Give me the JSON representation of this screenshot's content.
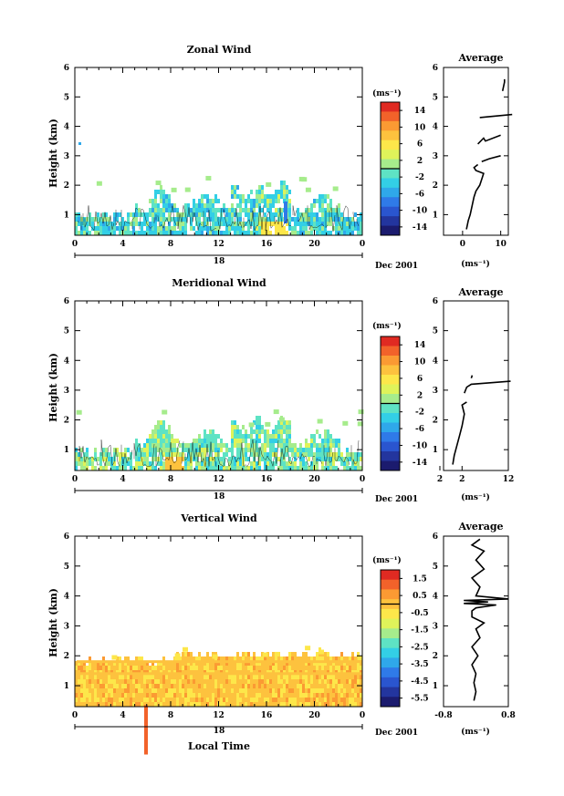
{
  "colors": {
    "palette": [
      "#1b1b6e",
      "#23359e",
      "#2a55cf",
      "#2f7ae8",
      "#2fa8ea",
      "#33cfe6",
      "#5ee3c4",
      "#a6ec8c",
      "#dff35a",
      "#fde74a",
      "#fdc23e",
      "#fb9a33",
      "#f2622a",
      "#e02a22"
    ],
    "vertical_dominant": "#fdc23e"
  },
  "chart_data": [
    {
      "type": "heatmap",
      "title": "Zonal Wind",
      "ylabel": "Height (km)",
      "xlabel": "",
      "x_ticks": [
        "0",
        "4",
        "8",
        "12",
        "16",
        "20",
        "0"
      ],
      "y_ticks": [
        "1",
        "2",
        "3",
        "4",
        "5",
        "6"
      ],
      "xlim": [
        0,
        24
      ],
      "ylim": [
        0.3,
        6
      ],
      "date_day": "18",
      "date_label": "Dec 2001",
      "colorbar": {
        "unit": "(ms⁻¹)",
        "ticks": [
          "14",
          "10",
          "6",
          "2",
          "-2",
          "-6",
          "-10",
          "-14"
        ],
        "range": [
          -16,
          16
        ]
      },
      "average": {
        "title": "Average",
        "xlabel": "(ms⁻¹)",
        "x_ticks": [
          "0",
          "10"
        ],
        "xlim": [
          -5,
          12
        ],
        "y_ticks": [
          "1",
          "2",
          "3",
          "4",
          "5",
          "6"
        ],
        "segments": [
          [
            [
              1.0,
              0.5
            ],
            [
              1.5,
              0.8
            ],
            [
              2.0,
              1.0
            ],
            [
              2.5,
              1.3
            ],
            [
              3.0,
              1.6
            ],
            [
              3.5,
              1.8
            ],
            [
              4.5,
              2.0
            ],
            [
              5.0,
              2.2
            ],
            [
              5.5,
              2.4
            ],
            [
              3.5,
              2.5
            ],
            [
              3.0,
              2.6
            ],
            [
              4.0,
              2.7
            ]
          ],
          [
            [
              5.0,
              2.8
            ],
            [
              7.0,
              2.9
            ],
            [
              10.0,
              3.0
            ]
          ],
          [
            [
              4.0,
              3.4
            ],
            [
              5.5,
              3.6
            ],
            [
              6.0,
              3.5
            ],
            [
              10.0,
              3.7
            ]
          ],
          [
            [
              4.5,
              4.3
            ],
            [
              13.0,
              4.4
            ]
          ],
          [
            [
              10.5,
              5.2
            ],
            [
              11.0,
              5.5
            ],
            [
              11.0,
              5.6
            ]
          ]
        ]
      }
    },
    {
      "type": "heatmap",
      "title": "Meridional Wind",
      "ylabel": "Height (km)",
      "xlabel": "",
      "x_ticks": [
        "0",
        "4",
        "8",
        "12",
        "16",
        "20",
        "0"
      ],
      "y_ticks": [
        "1",
        "2",
        "3",
        "4",
        "5",
        "6"
      ],
      "xlim": [
        0,
        24
      ],
      "ylim": [
        0.3,
        6
      ],
      "date_day": "18",
      "date_label": "Dec 2001",
      "colorbar": {
        "unit": "(ms⁻¹)",
        "ticks": [
          "14",
          "10",
          "6",
          "2",
          "-2",
          "-6",
          "-10",
          "-14"
        ],
        "range": [
          -16,
          16
        ]
      },
      "average": {
        "title": "Average",
        "xlabel": "(ms⁻¹)",
        "x_ticks": [
          "2",
          "2",
          "12"
        ],
        "xlim": [
          -2,
          12
        ],
        "y_ticks": [
          "1",
          "2",
          "3",
          "4",
          "5",
          "6"
        ],
        "segments": [
          [
            [
              0.0,
              0.5
            ],
            [
              0.3,
              0.8
            ],
            [
              1.0,
              1.2
            ],
            [
              1.5,
              1.5
            ],
            [
              2.0,
              1.8
            ],
            [
              2.5,
              2.2
            ],
            [
              2.0,
              2.5
            ],
            [
              3.0,
              2.6
            ]
          ],
          [
            [
              2.5,
              2.9
            ],
            [
              3.0,
              3.1
            ],
            [
              4.0,
              3.2
            ],
            [
              12.5,
              3.3
            ]
          ],
          [
            [
              4.0,
              3.4
            ],
            [
              4.2,
              3.5
            ]
          ]
        ]
      }
    },
    {
      "type": "heatmap",
      "title": "Vertical Wind",
      "ylabel": "Height (km)",
      "xlabel": "Local Time",
      "x_ticks": [
        "0",
        "4",
        "8",
        "12",
        "16",
        "20",
        "0"
      ],
      "y_ticks": [
        "1",
        "2",
        "3",
        "4",
        "5",
        "6"
      ],
      "xlim": [
        0,
        24
      ],
      "ylim": [
        0.3,
        6
      ],
      "date_day": "18",
      "date_label": "Dec 2001",
      "colorbar": {
        "unit": "(ms⁻¹)",
        "ticks": [
          "1.5",
          "0.5",
          "-0.5",
          "-1.5",
          "-2.5",
          "-3.5",
          "-4.5",
          "-5.5"
        ],
        "range": [
          -6,
          2
        ]
      },
      "average": {
        "title": "Average",
        "xlabel": "(ms⁻¹)",
        "x_ticks": [
          "-0.8",
          "0.8"
        ],
        "xlim": [
          -0.8,
          0.8
        ],
        "y_ticks": [
          "1",
          "2",
          "3",
          "4",
          "5",
          "6"
        ],
        "segments": [
          [
            [
              -0.05,
              0.5
            ],
            [
              0.0,
              0.8
            ],
            [
              -0.05,
              1.1
            ],
            [
              0.0,
              1.4
            ],
            [
              -0.1,
              1.7
            ],
            [
              0.05,
              2.0
            ],
            [
              -0.1,
              2.3
            ],
            [
              0.1,
              2.6
            ],
            [
              0.0,
              2.9
            ],
            [
              0.2,
              3.1
            ],
            [
              -0.1,
              3.3
            ],
            [
              -0.1,
              3.5
            ],
            [
              0.0,
              3.6
            ],
            [
              0.5,
              3.7
            ],
            [
              -0.3,
              3.75
            ],
            [
              0.3,
              3.8
            ],
            [
              -0.3,
              3.85
            ],
            [
              0.8,
              3.9
            ],
            [
              0.0,
              4.0
            ],
            [
              0.1,
              4.3
            ],
            [
              -0.1,
              4.6
            ],
            [
              0.2,
              4.9
            ],
            [
              0.0,
              5.2
            ],
            [
              0.2,
              5.5
            ],
            [
              -0.1,
              5.7
            ],
            [
              0.1,
              5.9
            ]
          ]
        ]
      }
    }
  ]
}
